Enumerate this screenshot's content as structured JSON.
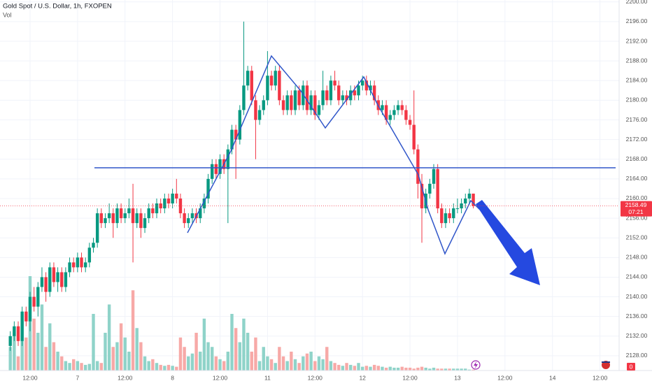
{
  "chart_data": {
    "type": "candlestick",
    "title": "Gold Spot / U.S. Dollar, 1h, FXOPEN",
    "volume_title": "Vol",
    "volume_label": 0,
    "last_price": 2158.49,
    "countdown": "07:21",
    "up_color": "#089981",
    "down_color": "#f23645",
    "volume_up_color": "#8fd3c9",
    "volume_down_color": "#f7a9a7",
    "grid": true,
    "ylim": [
      2125,
      2200.4
    ],
    "yticks": [
      {
        "value": 2128,
        "label": "2128.00"
      },
      {
        "value": 2132,
        "label": "2132.00"
      },
      {
        "value": 2136,
        "label": "2136.00"
      },
      {
        "value": 2140,
        "label": "2140.00"
      },
      {
        "value": 2144,
        "label": "2144.00"
      },
      {
        "value": 2148,
        "label": "2148.00"
      },
      {
        "value": 2152,
        "label": "2152.00"
      },
      {
        "value": 2156,
        "label": "2156.00"
      },
      {
        "value": 2160,
        "label": "2160.00"
      },
      {
        "value": 2164,
        "label": "2164.00"
      },
      {
        "value": 2168,
        "label": "2168.00"
      },
      {
        "value": 2172,
        "label": "2172.00"
      },
      {
        "value": 2176,
        "label": "2176.00"
      },
      {
        "value": 2180,
        "label": "2180.00"
      },
      {
        "value": 2184,
        "label": "2184.00"
      },
      {
        "value": 2188,
        "label": "2188.00"
      },
      {
        "value": 2192,
        "label": "2192.00"
      },
      {
        "value": 2196,
        "label": "2196.00"
      },
      {
        "value": 2200,
        "label": "2200.00"
      }
    ],
    "categories": [
      null,
      null,
      null,
      null,
      null,
      "12:00",
      null,
      null,
      null,
      null,
      null,
      null,
      null,
      null,
      null,
      null,
      null,
      "7",
      null,
      null,
      null,
      null,
      null,
      null,
      null,
      null,
      null,
      null,
      null,
      "12:00",
      null,
      null,
      null,
      null,
      null,
      null,
      null,
      null,
      null,
      null,
      null,
      "8",
      null,
      null,
      null,
      null,
      null,
      null,
      null,
      null,
      null,
      null,
      null,
      "12:00",
      null,
      null,
      null,
      null,
      null,
      null,
      null,
      null,
      null,
      null,
      null,
      "11",
      null,
      null,
      null,
      null,
      null,
      null,
      null,
      null,
      null,
      null,
      null,
      "12:00",
      null,
      null,
      null,
      null,
      null,
      null,
      null,
      null,
      null,
      null,
      null,
      "12",
      null,
      null,
      null,
      null,
      null,
      null,
      null,
      null,
      null,
      null,
      null,
      "12:00",
      null,
      null,
      null,
      null,
      null,
      null,
      null,
      null,
      null,
      null,
      null,
      "13",
      null,
      null,
      null,
      null,
      null,
      null,
      null,
      null,
      null,
      null,
      null,
      "12:00",
      null,
      null,
      null,
      null,
      null,
      null,
      null,
      null,
      null,
      null,
      null,
      "14",
      null,
      null,
      null,
      null,
      null,
      null,
      null,
      null,
      null,
      null,
      null,
      "12:00"
    ],
    "candles": [
      [
        2130,
        2133,
        2129,
        2132
      ],
      [
        2132,
        2135,
        2131,
        2134
      ],
      [
        2134,
        2135,
        2130,
        2131
      ],
      [
        2131,
        2138,
        2130,
        2137
      ],
      [
        2137,
        2138,
        2134,
        2135
      ],
      [
        2135,
        2141,
        2133,
        2140
      ],
      [
        2140,
        2142,
        2137,
        2138
      ],
      [
        2138,
        2143,
        2136,
        2142
      ],
      [
        2142,
        2146,
        2141,
        2144
      ],
      [
        2144,
        2145,
        2139,
        2141
      ],
      [
        2141,
        2147,
        2140,
        2146
      ],
      [
        2146,
        2147,
        2142,
        2143
      ],
      [
        2143,
        2146,
        2141,
        2145
      ],
      [
        2145,
        2146,
        2141,
        2142
      ],
      [
        2142,
        2146,
        2141,
        2145
      ],
      [
        2145,
        2148,
        2144,
        2147
      ],
      [
        2147,
        2148,
        2145,
        2146
      ],
      [
        2146,
        2149,
        2145,
        2148
      ],
      [
        2148,
        2149,
        2145,
        2146
      ],
      [
        2146,
        2148,
        2145,
        2147
      ],
      [
        2147,
        2151,
        2146,
        2150
      ],
      [
        2150,
        2152,
        2149,
        2151
      ],
      [
        2151,
        2158,
        2150,
        2157
      ],
      [
        2157,
        2158,
        2154,
        2155
      ],
      [
        2155,
        2157,
        2154,
        2156
      ],
      [
        2156,
        2159,
        2155,
        2157
      ],
      [
        2157,
        2158,
        2152,
        2155
      ],
      [
        2155,
        2159,
        2154,
        2158
      ],
      [
        2158,
        2159,
        2155,
        2156
      ],
      [
        2156,
        2158,
        2155,
        2157
      ],
      [
        2157,
        2160,
        2156,
        2158
      ],
      [
        2158,
        2163,
        2147,
        2155
      ],
      [
        2155,
        2158,
        2154,
        2157
      ],
      [
        2157,
        2158,
        2152,
        2154
      ],
      [
        2154,
        2157,
        2153,
        2156
      ],
      [
        2156,
        2159,
        2155,
        2158
      ],
      [
        2158,
        2159,
        2156,
        2157
      ],
      [
        2157,
        2160,
        2156,
        2159
      ],
      [
        2159,
        2160,
        2157,
        2158
      ],
      [
        2158,
        2161,
        2157,
        2160
      ],
      [
        2160,
        2161,
        2158,
        2159
      ],
      [
        2159,
        2162,
        2158,
        2161
      ],
      [
        2161,
        2164,
        2159,
        2160
      ],
      [
        2160,
        2161,
        2156,
        2157
      ],
      [
        2157,
        2158,
        2154,
        2155
      ],
      [
        2155,
        2157,
        2154,
        2156
      ],
      [
        2156,
        2158,
        2155,
        2157
      ],
      [
        2157,
        2158,
        2155,
        2156
      ],
      [
        2156,
        2159,
        2155,
        2158
      ],
      [
        2158,
        2161,
        2157,
        2160
      ],
      [
        2160,
        2165,
        2159,
        2164
      ],
      [
        2164,
        2168,
        2163,
        2167
      ],
      [
        2167,
        2168,
        2164,
        2165
      ],
      [
        2165,
        2169,
        2164,
        2168
      ],
      [
        2168,
        2169,
        2165,
        2166
      ],
      [
        2166,
        2171,
        2155,
        2170
      ],
      [
        2170,
        2175,
        2169,
        2174
      ],
      [
        2174,
        2175,
        2164,
        2172
      ],
      [
        2172,
        2179,
        2171,
        2178
      ],
      [
        2178,
        2196,
        2177,
        2183
      ],
      [
        2183,
        2187,
        2182,
        2186
      ],
      [
        2186,
        2187,
        2179,
        2180
      ],
      [
        2180,
        2181,
        2168,
        2176
      ],
      [
        2176,
        2179,
        2175,
        2178
      ],
      [
        2178,
        2181,
        2177,
        2180
      ],
      [
        2180,
        2190,
        2179,
        2185
      ],
      [
        2185,
        2186,
        2182,
        2183
      ],
      [
        2183,
        2187,
        2182,
        2186
      ],
      [
        2186,
        2187,
        2179,
        2180
      ],
      [
        2180,
        2181,
        2177,
        2178
      ],
      [
        2178,
        2182,
        2177,
        2181
      ],
      [
        2181,
        2182,
        2177,
        2178
      ],
      [
        2178,
        2183,
        2177,
        2182
      ],
      [
        2182,
        2183,
        2178,
        2179
      ],
      [
        2179,
        2184,
        2178,
        2183
      ],
      [
        2183,
        2184,
        2177,
        2178
      ],
      [
        2178,
        2182,
        2177,
        2181
      ],
      [
        2181,
        2182,
        2176,
        2177
      ],
      [
        2177,
        2180,
        2176,
        2179
      ],
      [
        2179,
        2186,
        2178,
        2182
      ],
      [
        2182,
        2183,
        2179,
        2180
      ],
      [
        2180,
        2185,
        2179,
        2184
      ],
      [
        2184,
        2186,
        2182,
        2183
      ],
      [
        2183,
        2184,
        2179,
        2180
      ],
      [
        2180,
        2182,
        2179,
        2181
      ],
      [
        2181,
        2182,
        2179,
        2180
      ],
      [
        2180,
        2183,
        2179,
        2182
      ],
      [
        2182,
        2183,
        2180,
        2181
      ],
      [
        2181,
        2184,
        2180,
        2183
      ],
      [
        2183,
        2185,
        2182,
        2184
      ],
      [
        2184,
        2185,
        2181,
        2182
      ],
      [
        2182,
        2184,
        2181,
        2183
      ],
      [
        2183,
        2184,
        2179,
        2180
      ],
      [
        2180,
        2181,
        2177,
        2178
      ],
      [
        2178,
        2180,
        2177,
        2179
      ],
      [
        2179,
        2180,
        2175,
        2176
      ],
      [
        2176,
        2178,
        2175,
        2177
      ],
      [
        2177,
        2179,
        2176,
        2178
      ],
      [
        2178,
        2180,
        2177,
        2179
      ],
      [
        2179,
        2180,
        2177,
        2178
      ],
      [
        2178,
        2179,
        2175,
        2176
      ],
      [
        2176,
        2177,
        2174,
        2175
      ],
      [
        2175,
        2182,
        2169,
        2170
      ],
      [
        2170,
        2171,
        2160,
        2163
      ],
      [
        2163,
        2165,
        2151,
        2158
      ],
      [
        2158,
        2162,
        2157,
        2161
      ],
      [
        2161,
        2164,
        2160,
        2163
      ],
      [
        2163,
        2167,
        2162,
        2166
      ],
      [
        2166,
        2167,
        2157,
        2158
      ],
      [
        2158,
        2159,
        2154,
        2155
      ],
      [
        2155,
        2158,
        2154,
        2157
      ],
      [
        2157,
        2158,
        2155,
        2156
      ],
      [
        2156,
        2159,
        2155,
        2158
      ],
      [
        2158,
        2160,
        2157,
        2158
      ],
      [
        2158,
        2160,
        2157,
        2159
      ],
      [
        2159,
        2161,
        2158,
        2160
      ],
      [
        2160,
        2162,
        2159,
        2161
      ],
      [
        2161,
        2161,
        2158,
        2158.49
      ],
      null,
      null,
      null,
      null,
      null,
      null,
      null,
      null,
      null,
      null,
      null,
      null,
      null,
      null,
      null,
      null,
      null,
      null,
      null,
      null,
      null,
      null,
      null,
      null,
      null,
      null,
      null,
      null,
      null,
      null,
      null,
      null
    ],
    "volume": [
      25,
      45,
      15,
      60,
      35,
      100,
      55,
      40,
      70,
      25,
      50,
      30,
      20,
      15,
      10,
      8,
      12,
      10,
      8,
      6,
      7,
      60,
      10,
      8,
      40,
      70,
      25,
      30,
      50,
      35,
      20,
      85,
      45,
      30,
      15,
      10,
      12,
      8,
      6,
      5,
      6,
      5,
      4,
      35,
      25,
      15,
      18,
      40,
      20,
      55,
      30,
      25,
      15,
      12,
      10,
      20,
      60,
      45,
      30,
      55,
      40,
      20,
      35,
      10,
      25,
      15,
      12,
      8,
      25,
      15,
      10,
      20,
      12,
      8,
      15,
      18,
      20,
      10,
      15,
      12,
      25,
      10,
      8,
      6,
      5,
      8,
      6,
      5,
      8,
      4,
      5,
      4,
      6,
      5,
      4,
      3,
      4,
      3,
      3,
      4,
      3,
      3,
      2,
      3,
      4,
      3,
      2,
      3,
      2,
      2,
      2,
      2,
      2,
      2,
      2,
      2,
      1,
      1,
      null,
      null,
      null,
      null,
      null,
      null,
      null,
      null,
      null,
      null,
      null,
      null,
      null,
      null,
      null,
      null,
      null,
      null,
      null,
      null,
      null,
      null,
      null,
      null,
      null,
      null,
      null,
      null,
      null,
      null,
      null,
      null
    ]
  }
}
